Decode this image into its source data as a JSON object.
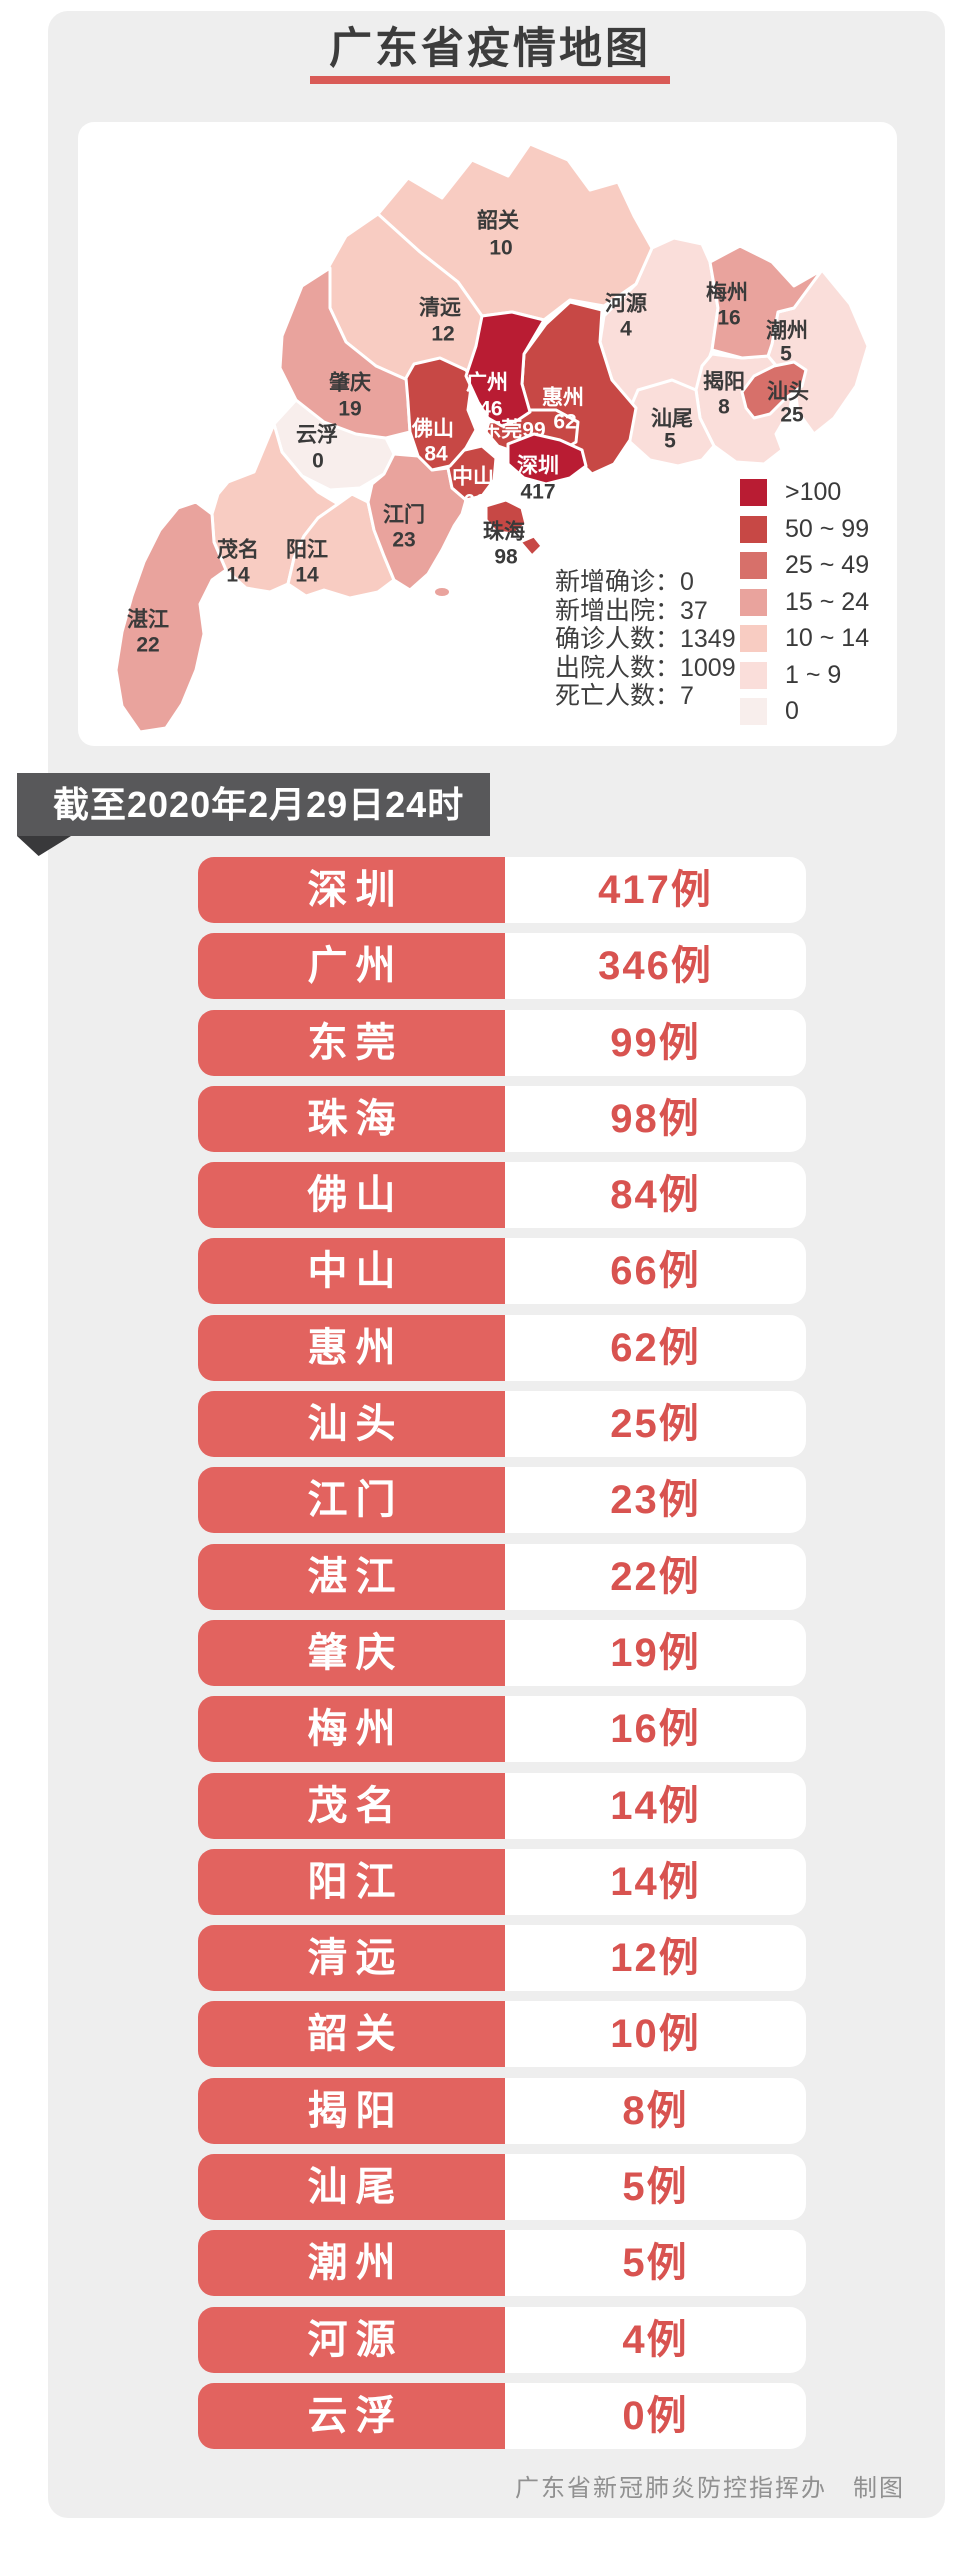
{
  "page": {
    "title": "广东省疫情地图",
    "banner": "截至2020年2月29日24时",
    "footer": "广东省新冠肺炎防控指挥办　制图"
  },
  "colors": {
    "panel_bg": "#eeeeee",
    "title": "#3c3c3c",
    "underline": "#d95b57",
    "banner_bg": "#58585a",
    "fold": "#39393b",
    "accent_red": "#e2635f",
    "value_red": "#d85350",
    "footer": "#909090",
    "map_border": "#ffffff",
    "buckets": {
      "b100": "#b91c33",
      "b50": "#c74845",
      "b25": "#d7706a",
      "b15": "#e9a39d",
      "b10": "#f8ccc2",
      "b1": "#fadeda",
      "b0": "#f8eeec"
    }
  },
  "map": {
    "stats_separator": "：",
    "stats": [
      {
        "label": "新增确诊",
        "value": "0"
      },
      {
        "label": "新增出院",
        "value": "37"
      },
      {
        "label": "确诊人数",
        "value": "1349"
      },
      {
        "label": "出院人数",
        "value": "1009"
      },
      {
        "label": "死亡人数",
        "value": "7"
      }
    ],
    "legend": [
      {
        "label": ">100",
        "bucket": "b100"
      },
      {
        "label": "50 ~ 99",
        "bucket": "b50"
      },
      {
        "label": "25 ~ 49",
        "bucket": "b25"
      },
      {
        "label": "15 ~ 24",
        "bucket": "b15"
      },
      {
        "label": "10 ~ 14",
        "bucket": "b10"
      },
      {
        "label": "1 ~ 9",
        "bucket": "b1"
      },
      {
        "label": "0",
        "bucket": "b0"
      }
    ],
    "regions": [
      {
        "id": "shaoguan",
        "name": "韶关",
        "value": 10
      },
      {
        "id": "qingyuan",
        "name": "清远",
        "value": 12
      },
      {
        "id": "heyuan",
        "name": "河源",
        "value": 4
      },
      {
        "id": "meizhou",
        "name": "梅州",
        "value": 16
      },
      {
        "id": "chaozhou",
        "name": "潮州",
        "value": 5
      },
      {
        "id": "jieyang",
        "name": "揭阳",
        "value": 8
      },
      {
        "id": "shantou",
        "name": "汕头",
        "value": 25
      },
      {
        "id": "shanwei",
        "name": "汕尾",
        "value": 5
      },
      {
        "id": "huizhou",
        "name": "惠州",
        "value": 62
      },
      {
        "id": "guangzhou",
        "name": "广州",
        "value": 346
      },
      {
        "id": "dongguan",
        "name": "东莞",
        "value": 99
      },
      {
        "id": "shenzhen",
        "name": "深圳",
        "value": 417,
        "num_dark": true
      },
      {
        "id": "zhuhai",
        "name": "珠海",
        "value": 98,
        "name_dark": true,
        "num_dark": true
      },
      {
        "id": "zhongshan",
        "name": "中山",
        "value": 66
      },
      {
        "id": "foshan",
        "name": "佛山",
        "value": 84
      },
      {
        "id": "zhaoqing",
        "name": "肇庆",
        "value": 19
      },
      {
        "id": "yunfu",
        "name": "云浮",
        "value": 0
      },
      {
        "id": "jiangmen",
        "name": "江门",
        "value": 23
      },
      {
        "id": "yangjiang",
        "name": "阳江",
        "value": 14
      },
      {
        "id": "maoming",
        "name": "茂名",
        "value": 14
      },
      {
        "id": "zhanjiang",
        "name": "湛江",
        "value": 22
      }
    ]
  },
  "table": {
    "suffix": "例",
    "rows": [
      {
        "city": "深圳",
        "cases": "417例"
      },
      {
        "city": "广州",
        "cases": "346例"
      },
      {
        "city": "东莞",
        "cases": "99例"
      },
      {
        "city": "珠海",
        "cases": "98例"
      },
      {
        "city": "佛山",
        "cases": "84例"
      },
      {
        "city": "中山",
        "cases": "66例"
      },
      {
        "city": "惠州",
        "cases": "62例"
      },
      {
        "city": "汕头",
        "cases": "25例"
      },
      {
        "city": "江门",
        "cases": "23例"
      },
      {
        "city": "湛江",
        "cases": "22例"
      },
      {
        "city": "肇庆",
        "cases": "19例"
      },
      {
        "city": "梅州",
        "cases": "16例"
      },
      {
        "city": "茂名",
        "cases": "14例"
      },
      {
        "city": "阳江",
        "cases": "14例"
      },
      {
        "city": "清远",
        "cases": "12例"
      },
      {
        "city": "韶关",
        "cases": "10例"
      },
      {
        "city": "揭阳",
        "cases": "8例"
      },
      {
        "city": "汕尾",
        "cases": "5例"
      },
      {
        "city": "潮州",
        "cases": "5例"
      },
      {
        "city": "河源",
        "cases": "4例"
      },
      {
        "city": "云浮",
        "cases": "0例"
      }
    ]
  },
  "chart_data": {
    "type": "heatmap",
    "subtype": "choropleth-map",
    "title": "广东省疫情地图",
    "as_of": "截至2020年2月29日24时",
    "categories": [
      "深圳",
      "广州",
      "东莞",
      "珠海",
      "佛山",
      "中山",
      "惠州",
      "汕头",
      "江门",
      "湛江",
      "肇庆",
      "梅州",
      "茂名",
      "阳江",
      "清远",
      "韶关",
      "揭阳",
      "汕尾",
      "潮州",
      "河源",
      "云浮"
    ],
    "values": [
      417,
      346,
      99,
      98,
      84,
      66,
      62,
      25,
      23,
      22,
      19,
      16,
      14,
      14,
      12,
      10,
      8,
      5,
      5,
      4,
      0
    ],
    "legend_buckets": [
      ">100",
      "50~99",
      "25~49",
      "15~24",
      "10~14",
      "1~9",
      "0"
    ],
    "summary": {
      "新增确诊": 0,
      "新增出院": 37,
      "确诊人数": 1349,
      "出院人数": 1009,
      "死亡人数": 7
    },
    "legend_position": "bottom-right"
  }
}
